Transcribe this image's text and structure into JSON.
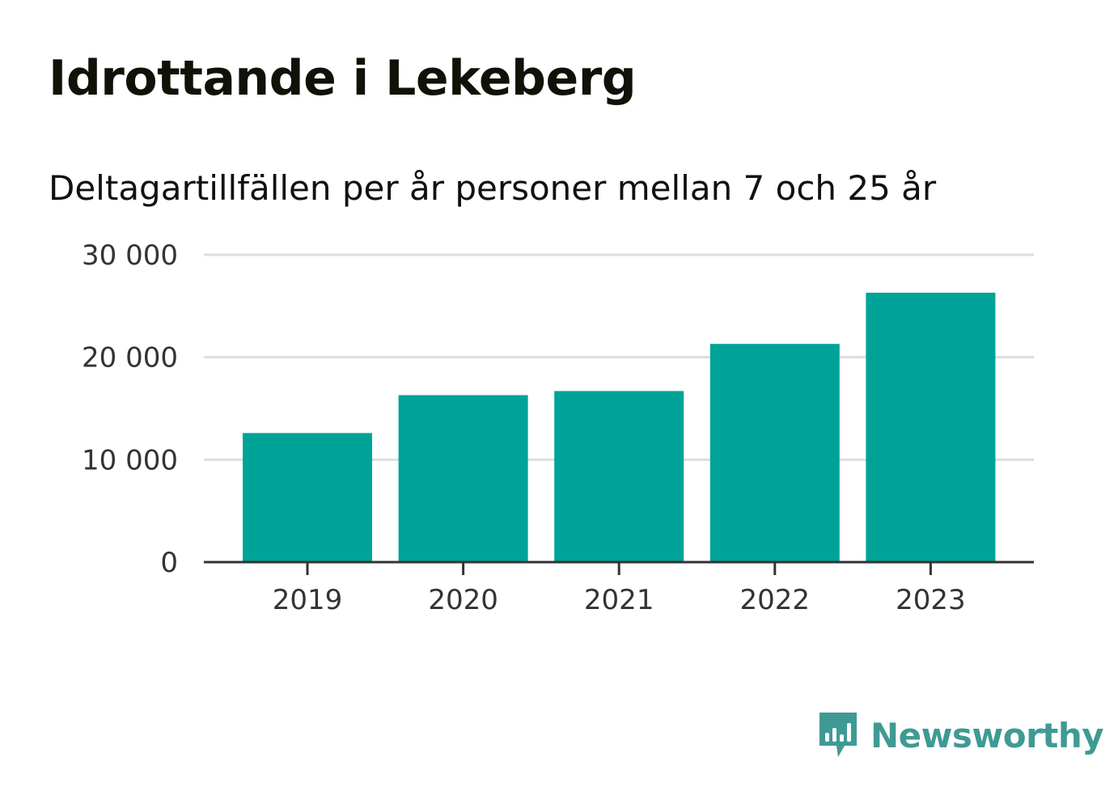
{
  "title": "Idrottande i Lekeberg",
  "subtitle": "Deltagartillfällen per år personer mellan 7 och 25 år",
  "brand": {
    "name": "Newsworthy",
    "color": "#3f9a94"
  },
  "colors": {
    "bar": "#00a398",
    "grid": "#dddddd",
    "axis": "#333333"
  },
  "chart_data": {
    "type": "bar",
    "categories": [
      "2019",
      "2020",
      "2021",
      "2022",
      "2023"
    ],
    "values": [
      12600,
      16300,
      16700,
      21300,
      26300
    ],
    "ylim": [
      0,
      30000
    ],
    "yticks": [
      0,
      10000,
      20000,
      30000
    ],
    "ytick_labels": [
      "0",
      "10 000",
      "20 000",
      "30 000"
    ],
    "grid": true,
    "xlabel": "",
    "ylabel": ""
  }
}
